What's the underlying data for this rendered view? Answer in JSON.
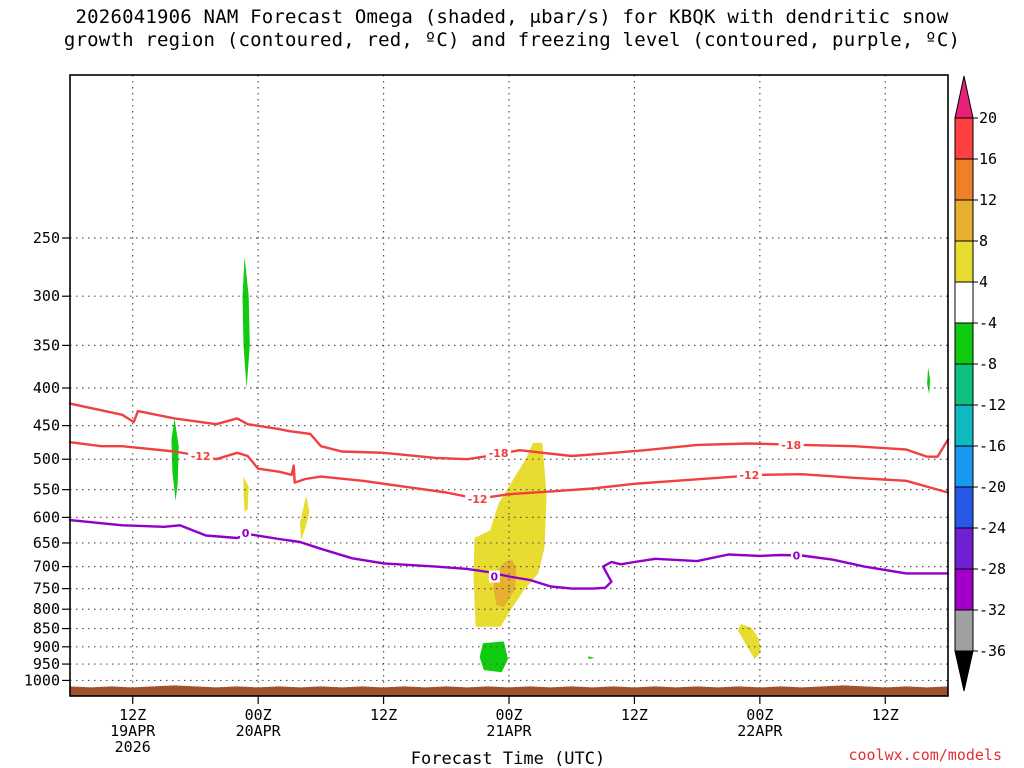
{
  "title_line1": "2026041906 NAM Forecast Omega (shaded, μbar/s) for KBQK with dendritic snow",
  "title_line2": "growth region (contoured, red, ºC) and freezing level (contoured, purple, ºC)",
  "credit": "coolwx.com/models",
  "colors": {
    "dgz_contour": "#f04040",
    "freezing_contour": "#9000c8",
    "terrain": "#a0522d",
    "grid": "#555555"
  },
  "chart_data": {
    "type": "heatmap",
    "xlabel": "Forecast Time (UTC)",
    "ylabel": "",
    "x_units": "hours since 2026041906",
    "xlim": [
      0,
      84
    ],
    "ylim": [
      1050,
      150
    ],
    "y_scale": "log-pressure",
    "grid": true,
    "y_ticks": [
      250,
      300,
      350,
      400,
      450,
      500,
      550,
      600,
      650,
      700,
      750,
      800,
      850,
      900,
      950,
      1000
    ],
    "x_ticks": [
      {
        "x": 6,
        "lines": [
          "12Z",
          "19APR",
          "2026"
        ]
      },
      {
        "x": 18,
        "lines": [
          "00Z",
          "20APR"
        ]
      },
      {
        "x": 30,
        "lines": [
          "12Z"
        ]
      },
      {
        "x": 42,
        "lines": [
          "00Z",
          "21APR"
        ]
      },
      {
        "x": 54,
        "lines": [
          "12Z"
        ]
      },
      {
        "x": 66,
        "lines": [
          "00Z",
          "22APR"
        ]
      },
      {
        "x": 78,
        "lines": [
          "12Z"
        ]
      }
    ],
    "colorbar": {
      "labels": [
        "20",
        "16",
        "12",
        "8",
        "4",
        "-4",
        "-8",
        "-12",
        "-16",
        "-20",
        "-24",
        "-28",
        "-32",
        "-36"
      ],
      "bins": [
        {
          "color": "#ff4040"
        },
        {
          "color": "#f08028"
        },
        {
          "color": "#e8b030"
        },
        {
          "color": "#e8dc30"
        },
        {
          "color": "#ffffff"
        },
        {
          "color": "#10cc10"
        },
        {
          "color": "#10c080"
        },
        {
          "color": "#10b8c0"
        },
        {
          "color": "#1898f0"
        },
        {
          "color": "#2858e8"
        },
        {
          "color": "#7020d0"
        },
        {
          "color": "#a000c8"
        },
        {
          "color": "#a0a0a0"
        }
      ],
      "top_arrow": "#e8207a",
      "bottom_arrow": "#000000"
    },
    "omega_regions": [
      {
        "value_range": [
          -8,
          -4
        ],
        "color": "#10cc10",
        "points": [
          [
            16.7,
            265
          ],
          [
            17.1,
            300
          ],
          [
            17.2,
            350
          ],
          [
            16.9,
            400
          ],
          [
            16.6,
            350
          ],
          [
            16.5,
            300
          ]
        ]
      },
      {
        "value_range": [
          -8,
          -4
        ],
        "color": "#10cc10",
        "points": [
          [
            10.0,
            440
          ],
          [
            10.4,
            480
          ],
          [
            10.3,
            540
          ],
          [
            10.1,
            570
          ],
          [
            9.8,
            520
          ],
          [
            9.7,
            470
          ]
        ]
      },
      {
        "value_range": [
          -8,
          -4
        ],
        "color": "#10cc10",
        "points": [
          [
            82.1,
            375
          ],
          [
            82.3,
            390
          ],
          [
            82.2,
            408
          ],
          [
            82.0,
            395
          ]
        ]
      },
      {
        "value_range": [
          -8,
          -4
        ],
        "color": "#10cc10",
        "points": [
          [
            39.5,
            890
          ],
          [
            41.5,
            885
          ],
          [
            41.9,
            935
          ],
          [
            41.3,
            975
          ],
          [
            39.6,
            968
          ],
          [
            39.2,
            930
          ]
        ]
      },
      {
        "value_range": [
          -8,
          -4
        ],
        "color": "#10cc10",
        "points": [
          [
            49.6,
            927
          ],
          [
            50.2,
            932
          ],
          [
            49.6,
            935
          ]
        ]
      },
      {
        "value_range": [
          4,
          8
        ],
        "color": "#e8dc30",
        "points": [
          [
            16.6,
            528
          ],
          [
            17.1,
            545
          ],
          [
            17.0,
            585
          ],
          [
            16.7,
            590
          ],
          [
            16.6,
            560
          ]
        ]
      },
      {
        "value_range": [
          4,
          8
        ],
        "color": "#e8dc30",
        "points": [
          [
            22.6,
            560
          ],
          [
            22.9,
            590
          ],
          [
            22.6,
            615
          ],
          [
            22.1,
            645
          ],
          [
            22.0,
            610
          ]
        ]
      },
      {
        "value_range": [
          4,
          8
        ],
        "color": "#e8dc30",
        "points": [
          [
            44.3,
            475
          ],
          [
            45.2,
            475
          ],
          [
            45.6,
            560
          ],
          [
            45.4,
            660
          ],
          [
            44.8,
            715
          ],
          [
            43.4,
            755
          ],
          [
            42.2,
            800
          ],
          [
            41.2,
            845
          ],
          [
            38.8,
            845
          ],
          [
            38.6,
            720
          ],
          [
            38.7,
            640
          ],
          [
            40.2,
            625
          ],
          [
            41.0,
            575
          ],
          [
            42.5,
            530
          ],
          [
            43.6,
            500
          ]
        ]
      },
      {
        "value_range": [
          4,
          8
        ],
        "color": "#e8dc30",
        "points": [
          [
            64.2,
            838
          ],
          [
            65.2,
            848
          ],
          [
            65.9,
            878
          ],
          [
            66.1,
            915
          ],
          [
            65.5,
            935
          ],
          [
            64.7,
            895
          ],
          [
            63.9,
            855
          ]
        ]
      },
      {
        "value_range": [
          8,
          12
        ],
        "color": "#e8b030",
        "points": [
          [
            42.3,
            685
          ],
          [
            42.7,
            705
          ],
          [
            42.6,
            750
          ],
          [
            41.5,
            795
          ],
          [
            40.8,
            790
          ],
          [
            40.5,
            750
          ],
          [
            40.8,
            710
          ],
          [
            41.6,
            690
          ]
        ]
      }
    ],
    "contours": [
      {
        "label": "-18",
        "color": "#f04040",
        "label_at": [
          [
            41.0,
            490
          ],
          [
            69.0,
            478
          ]
        ],
        "points": [
          [
            0,
            420
          ],
          [
            5,
            435
          ],
          [
            6.1,
            445
          ],
          [
            6.5,
            430
          ],
          [
            10,
            440
          ],
          [
            14,
            448
          ],
          [
            16,
            440
          ],
          [
            17,
            448
          ],
          [
            20,
            455
          ],
          [
            21,
            458
          ],
          [
            22,
            460
          ],
          [
            23,
            462
          ],
          [
            24,
            480
          ],
          [
            26,
            488
          ],
          [
            30,
            490
          ],
          [
            35,
            498
          ],
          [
            38,
            500
          ],
          [
            40,
            495
          ],
          [
            43,
            486
          ],
          [
            48,
            495
          ],
          [
            52,
            490
          ],
          [
            55,
            486
          ],
          [
            60,
            478
          ],
          [
            65,
            476
          ],
          [
            70,
            478
          ],
          [
            75,
            480
          ],
          [
            80,
            485
          ],
          [
            82,
            496
          ],
          [
            83,
            496
          ],
          [
            84,
            470
          ]
        ]
      },
      {
        "label": "-12",
        "color": "#f04040",
        "label_at": [
          [
            12.5,
            495
          ],
          [
            39.0,
            566
          ],
          [
            65.0,
            525
          ]
        ],
        "points": [
          [
            0,
            474
          ],
          [
            3,
            480
          ],
          [
            5,
            480
          ],
          [
            10,
            488
          ],
          [
            12.5,
            495
          ],
          [
            14,
            500
          ],
          [
            16,
            490
          ],
          [
            17,
            495
          ],
          [
            18,
            515
          ],
          [
            20,
            520
          ],
          [
            21.2,
            525
          ],
          [
            21.4,
            510
          ],
          [
            21.5,
            538
          ],
          [
            22.5,
            532
          ],
          [
            24,
            528
          ],
          [
            28,
            535
          ],
          [
            32,
            545
          ],
          [
            36,
            555
          ],
          [
            39,
            566
          ],
          [
            42,
            558
          ],
          [
            46,
            553
          ],
          [
            50,
            548
          ],
          [
            54,
            540
          ],
          [
            58,
            535
          ],
          [
            62,
            530
          ],
          [
            66,
            525
          ],
          [
            70,
            524
          ],
          [
            75,
            530
          ],
          [
            80,
            535
          ],
          [
            84,
            555
          ]
        ]
      },
      {
        "label": "0",
        "color": "#9000c8",
        "label_at": [
          [
            16.8,
            630
          ],
          [
            40.6,
            722
          ],
          [
            69.5,
            676
          ]
        ],
        "points": [
          [
            0,
            605
          ],
          [
            5,
            615
          ],
          [
            9,
            618
          ],
          [
            10.5,
            615
          ],
          [
            13,
            635
          ],
          [
            16,
            640
          ],
          [
            17,
            632
          ],
          [
            20,
            642
          ],
          [
            22,
            648
          ],
          [
            24,
            662
          ],
          [
            27,
            682
          ],
          [
            30,
            693
          ],
          [
            35,
            700
          ],
          [
            38,
            705
          ],
          [
            40,
            712
          ],
          [
            42,
            722
          ],
          [
            44,
            730
          ],
          [
            46,
            745
          ],
          [
            48,
            750
          ],
          [
            50,
            750
          ],
          [
            51.2,
            748
          ],
          [
            51.8,
            734
          ],
          [
            51,
            700
          ],
          [
            51.8,
            690
          ],
          [
            52.7,
            695
          ],
          [
            54,
            690
          ],
          [
            56,
            683
          ],
          [
            60,
            688
          ],
          [
            63,
            674
          ],
          [
            66,
            677
          ],
          [
            68,
            675
          ],
          [
            70,
            676
          ],
          [
            73,
            685
          ],
          [
            76,
            700
          ],
          [
            80,
            715
          ],
          [
            84,
            715
          ]
        ]
      }
    ]
  }
}
